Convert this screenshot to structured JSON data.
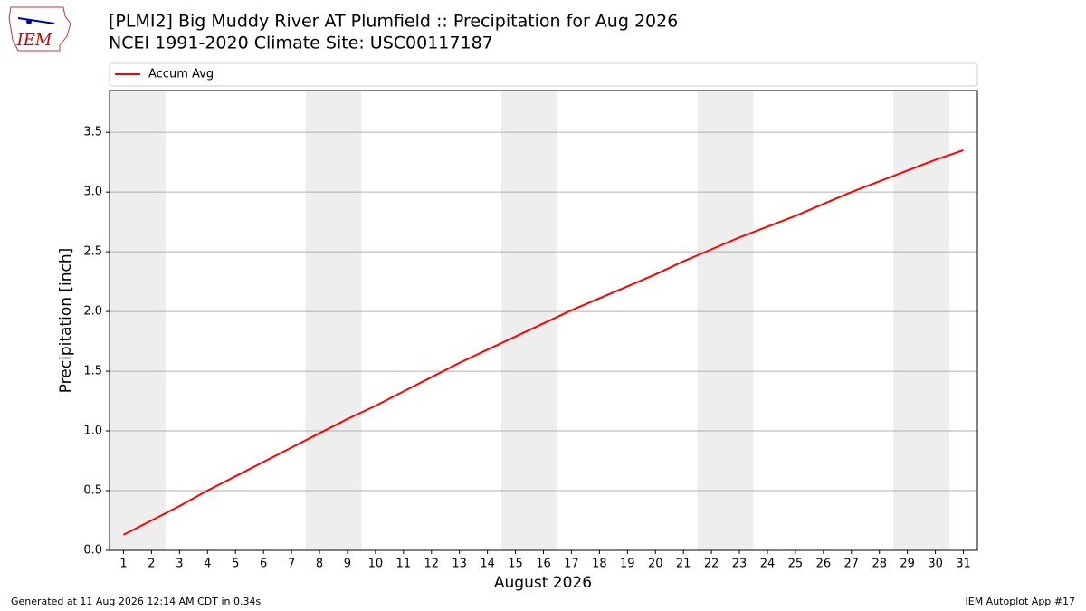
{
  "logo_text": "IEM",
  "footer": {
    "left": "Generated at 11 Aug 2026 12:14 AM CDT in 0.34s",
    "right": "IEM Autoplot App #17"
  },
  "chart_data": {
    "type": "line",
    "title": "[PLMI2] Big Muddy River  AT Plumfield :: Precipitation for Aug 2026",
    "subtitle": "NCEI 1991-2020 Climate Site: USC00117187",
    "x_label": "August 2026",
    "y_label": "Precipitation [inch]",
    "x": [
      1,
      2,
      3,
      4,
      5,
      6,
      7,
      8,
      9,
      10,
      11,
      12,
      13,
      14,
      15,
      16,
      17,
      18,
      19,
      20,
      21,
      22,
      23,
      24,
      25,
      26,
      27,
      28,
      29,
      30,
      31
    ],
    "series": [
      {
        "name": "Accum Avg",
        "color": "#ff0000",
        "values": [
          0.13,
          0.25,
          0.37,
          0.5,
          0.62,
          0.74,
          0.86,
          0.98,
          1.1,
          1.21,
          1.33,
          1.45,
          1.57,
          1.68,
          1.79,
          1.9,
          2.01,
          2.11,
          2.21,
          2.31,
          2.42,
          2.52,
          2.62,
          2.71,
          2.8,
          2.9,
          3.0,
          3.09,
          3.18,
          3.27,
          3.35
        ]
      }
    ],
    "weekend_bands": [
      [
        0.5,
        2.5
      ],
      [
        7.5,
        9.5
      ],
      [
        14.5,
        16.5
      ],
      [
        21.5,
        23.5
      ],
      [
        28.5,
        30.5
      ]
    ],
    "xlim": [
      0.5,
      31.5
    ],
    "ylim": [
      0,
      3.85
    ],
    "xticks": [
      1,
      2,
      3,
      4,
      5,
      6,
      7,
      8,
      9,
      10,
      11,
      12,
      13,
      14,
      15,
      16,
      17,
      18,
      19,
      20,
      21,
      22,
      23,
      24,
      25,
      26,
      27,
      28,
      29,
      30,
      31
    ],
    "yticks": [
      {
        "value": 0,
        "label": "0.0"
      },
      0.5,
      {
        "value": 1,
        "label": "1.0"
      },
      1.5,
      {
        "value": 2,
        "label": "2.0"
      },
      2.5,
      {
        "value": 3,
        "label": "3.0"
      },
      3.5
    ],
    "grid": true,
    "legend_position": "top"
  }
}
